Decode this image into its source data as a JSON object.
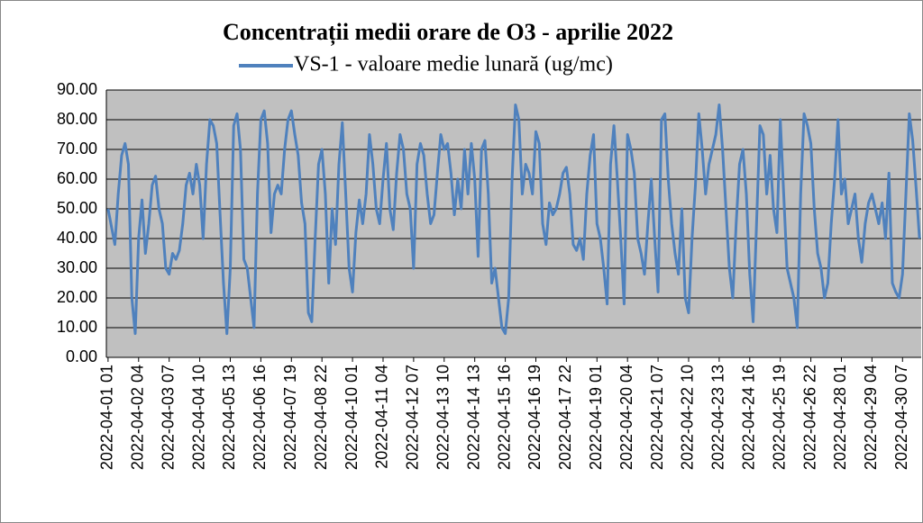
{
  "chart_data": {
    "type": "line",
    "title": "Concentrații medii orare de O3 - aprilie 2022",
    "ylim": [
      0,
      90
    ],
    "yticks": [
      {
        "value": 0,
        "label": "0.00"
      },
      {
        "value": 10,
        "label": "10.00"
      },
      {
        "value": 20,
        "label": "20.00"
      },
      {
        "value": 30,
        "label": "30.00"
      },
      {
        "value": 40,
        "label": "40.00"
      },
      {
        "value": 50,
        "label": "50.00"
      },
      {
        "value": 60,
        "label": "60.00"
      },
      {
        "value": 70,
        "label": "70.00"
      },
      {
        "value": 80,
        "label": "80.00"
      },
      {
        "value": 90,
        "label": "90.00"
      }
    ],
    "grid": true,
    "legend": "top",
    "categories": [
      "2022-04-01 01",
      null,
      null,
      null,
      null,
      null,
      null,
      null,
      null,
      "2022-04-02 04",
      null,
      null,
      null,
      null,
      null,
      null,
      null,
      null,
      "2022-04-03 07",
      null,
      null,
      null,
      null,
      null,
      null,
      null,
      null,
      "2022-04-04 10",
      null,
      null,
      null,
      null,
      null,
      null,
      null,
      null,
      "2022-04-05 13",
      null,
      null,
      null,
      null,
      null,
      null,
      null,
      null,
      "2022-04-06 16",
      null,
      null,
      null,
      null,
      null,
      null,
      null,
      null,
      "2022-04-07 19",
      null,
      null,
      null,
      null,
      null,
      null,
      null,
      null,
      "2022-04-08 22",
      null,
      null,
      null,
      null,
      null,
      null,
      null,
      null,
      "2022-04-10 01",
      null,
      null,
      null,
      null,
      null,
      null,
      null,
      null,
      "2022-04-11 04",
      null,
      null,
      null,
      null,
      null,
      null,
      null,
      null,
      "2022-04-12 07",
      null,
      null,
      null,
      null,
      null,
      null,
      null,
      null,
      "2022-04-13 10",
      null,
      null,
      null,
      null,
      null,
      null,
      null,
      null,
      "2022-04-14 13",
      null,
      null,
      null,
      null,
      null,
      null,
      null,
      null,
      "2022-04-15 16",
      null,
      null,
      null,
      null,
      null,
      null,
      null,
      null,
      "2022-04-16 19",
      null,
      null,
      null,
      null,
      null,
      null,
      null,
      null,
      "2022-04-17 22",
      null,
      null,
      null,
      null,
      null,
      null,
      null,
      null,
      "2022-04-19 01",
      null,
      null,
      null,
      null,
      null,
      null,
      null,
      null,
      "2022-04-20 04",
      null,
      null,
      null,
      null,
      null,
      null,
      null,
      null,
      "2022-04-21 07",
      null,
      null,
      null,
      null,
      null,
      null,
      null,
      null,
      "2022-04-22 10",
      null,
      null,
      null,
      null,
      null,
      null,
      null,
      null,
      "2022-04-23 13",
      null,
      null,
      null,
      null,
      null,
      null,
      null,
      null,
      "2022-04-24 16",
      null,
      null,
      null,
      null,
      null,
      null,
      null,
      null,
      "2022-04-25 19",
      null,
      null,
      null,
      null,
      null,
      null,
      null,
      null,
      "2022-04-26 22",
      null,
      null,
      null,
      null,
      null,
      null,
      null,
      null,
      "2022-04-28 01",
      null,
      null,
      null,
      null,
      null,
      null,
      null,
      null,
      "2022-04-29 04",
      null,
      null,
      null,
      null,
      null,
      null,
      null,
      null,
      "2022-04-30 07",
      null,
      null,
      null,
      null,
      null
    ],
    "series": [
      {
        "name": "VS-1 - valoare medie lunară (ug/mc)",
        "color": "#4f81bd",
        "values": [
          50,
          44,
          38,
          55,
          68,
          72,
          65,
          20,
          8,
          40,
          53,
          35,
          45,
          58,
          61,
          50,
          45,
          30,
          28,
          35,
          33,
          36,
          45,
          58,
          62,
          55,
          65,
          58,
          40,
          65,
          80,
          78,
          72,
          48,
          25,
          8,
          30,
          78,
          82,
          70,
          33,
          30,
          20,
          10,
          55,
          80,
          83,
          72,
          42,
          55,
          58,
          55,
          70,
          80,
          83,
          75,
          68,
          52,
          45,
          15,
          12,
          40,
          65,
          70,
          55,
          25,
          50,
          38,
          65,
          79,
          55,
          30,
          22,
          42,
          53,
          45,
          55,
          75,
          65,
          50,
          45,
          60,
          72,
          50,
          43,
          62,
          75,
          70,
          55,
          50,
          30,
          65,
          72,
          68,
          55,
          45,
          48,
          62,
          75,
          70,
          72,
          62,
          48,
          60,
          50,
          70,
          55,
          72,
          60,
          34,
          70,
          73,
          55,
          25,
          30,
          20,
          10,
          8,
          20,
          60,
          85,
          80,
          55,
          65,
          62,
          55,
          76,
          72,
          45,
          38,
          52,
          48,
          50,
          55,
          62,
          64,
          55,
          38,
          36,
          40,
          33,
          55,
          68,
          75,
          45,
          40,
          30,
          18,
          65,
          78,
          60,
          40,
          18,
          75,
          70,
          62,
          40,
          35,
          28,
          45,
          60,
          40,
          22,
          80,
          82,
          60,
          45,
          35,
          28,
          50,
          20,
          15,
          40,
          58,
          82,
          70,
          55,
          65,
          70,
          75,
          85,
          70,
          50,
          30,
          20,
          45,
          65,
          70,
          55,
          28,
          12,
          45,
          78,
          75,
          55,
          68,
          50,
          42,
          80,
          55,
          30,
          25,
          20,
          10,
          55,
          82,
          78,
          72,
          50,
          35,
          30,
          20,
          25,
          45,
          60,
          80,
          55,
          60,
          45,
          50,
          55,
          40,
          32,
          45,
          52,
          55,
          50,
          45,
          52,
          40,
          62,
          25,
          22,
          20,
          28,
          55,
          82,
          73,
          57,
          40
        ]
      }
    ]
  }
}
